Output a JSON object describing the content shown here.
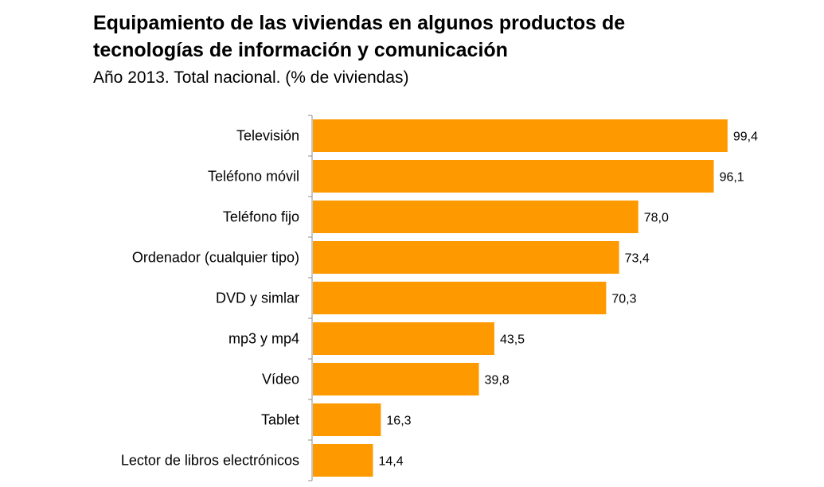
{
  "chart_data": {
    "type": "bar",
    "orientation": "horizontal",
    "title": "Equipamiento de las viviendas en algunos productos de tecnologías de información y comunicación",
    "subtitle": "Año 2013. Total nacional. (% de viviendas)",
    "categories": [
      "Televisión",
      "Teléfono móvil",
      "Teléfono fijo",
      "Ordenador (cualquier tipo)",
      "DVD y simlar",
      "mp3 y mp4",
      "Vídeo",
      "Tablet",
      "Lector de libros electrónicos"
    ],
    "values": [
      99.4,
      96.1,
      78.0,
      73.4,
      70.3,
      43.5,
      39.8,
      16.3,
      14.4
    ],
    "value_labels": [
      "99,4",
      "96,1",
      "78,0",
      "73,4",
      "70,3",
      "43,5",
      "39,8",
      "16,3",
      "14,4"
    ],
    "xlabel": "",
    "ylabel": "",
    "xlim": [
      0,
      100
    ],
    "grid": false,
    "legend": "none",
    "bar_color": "#FF9900"
  }
}
